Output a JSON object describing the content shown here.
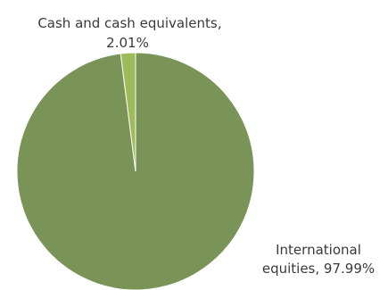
{
  "chart_data": {
    "type": "pie",
    "title": "",
    "slices": [
      {
        "name": "International equities",
        "value": 97.99,
        "value_label": "97.99%",
        "color": "#7a9457"
      },
      {
        "name": "Cash and cash equivalents",
        "value": 2.01,
        "value_label": "2.01%",
        "color": "#9dbb59"
      }
    ],
    "start_angle_deg": 0,
    "direction": "clockwise",
    "legend": "none",
    "data_labels": "outside"
  }
}
